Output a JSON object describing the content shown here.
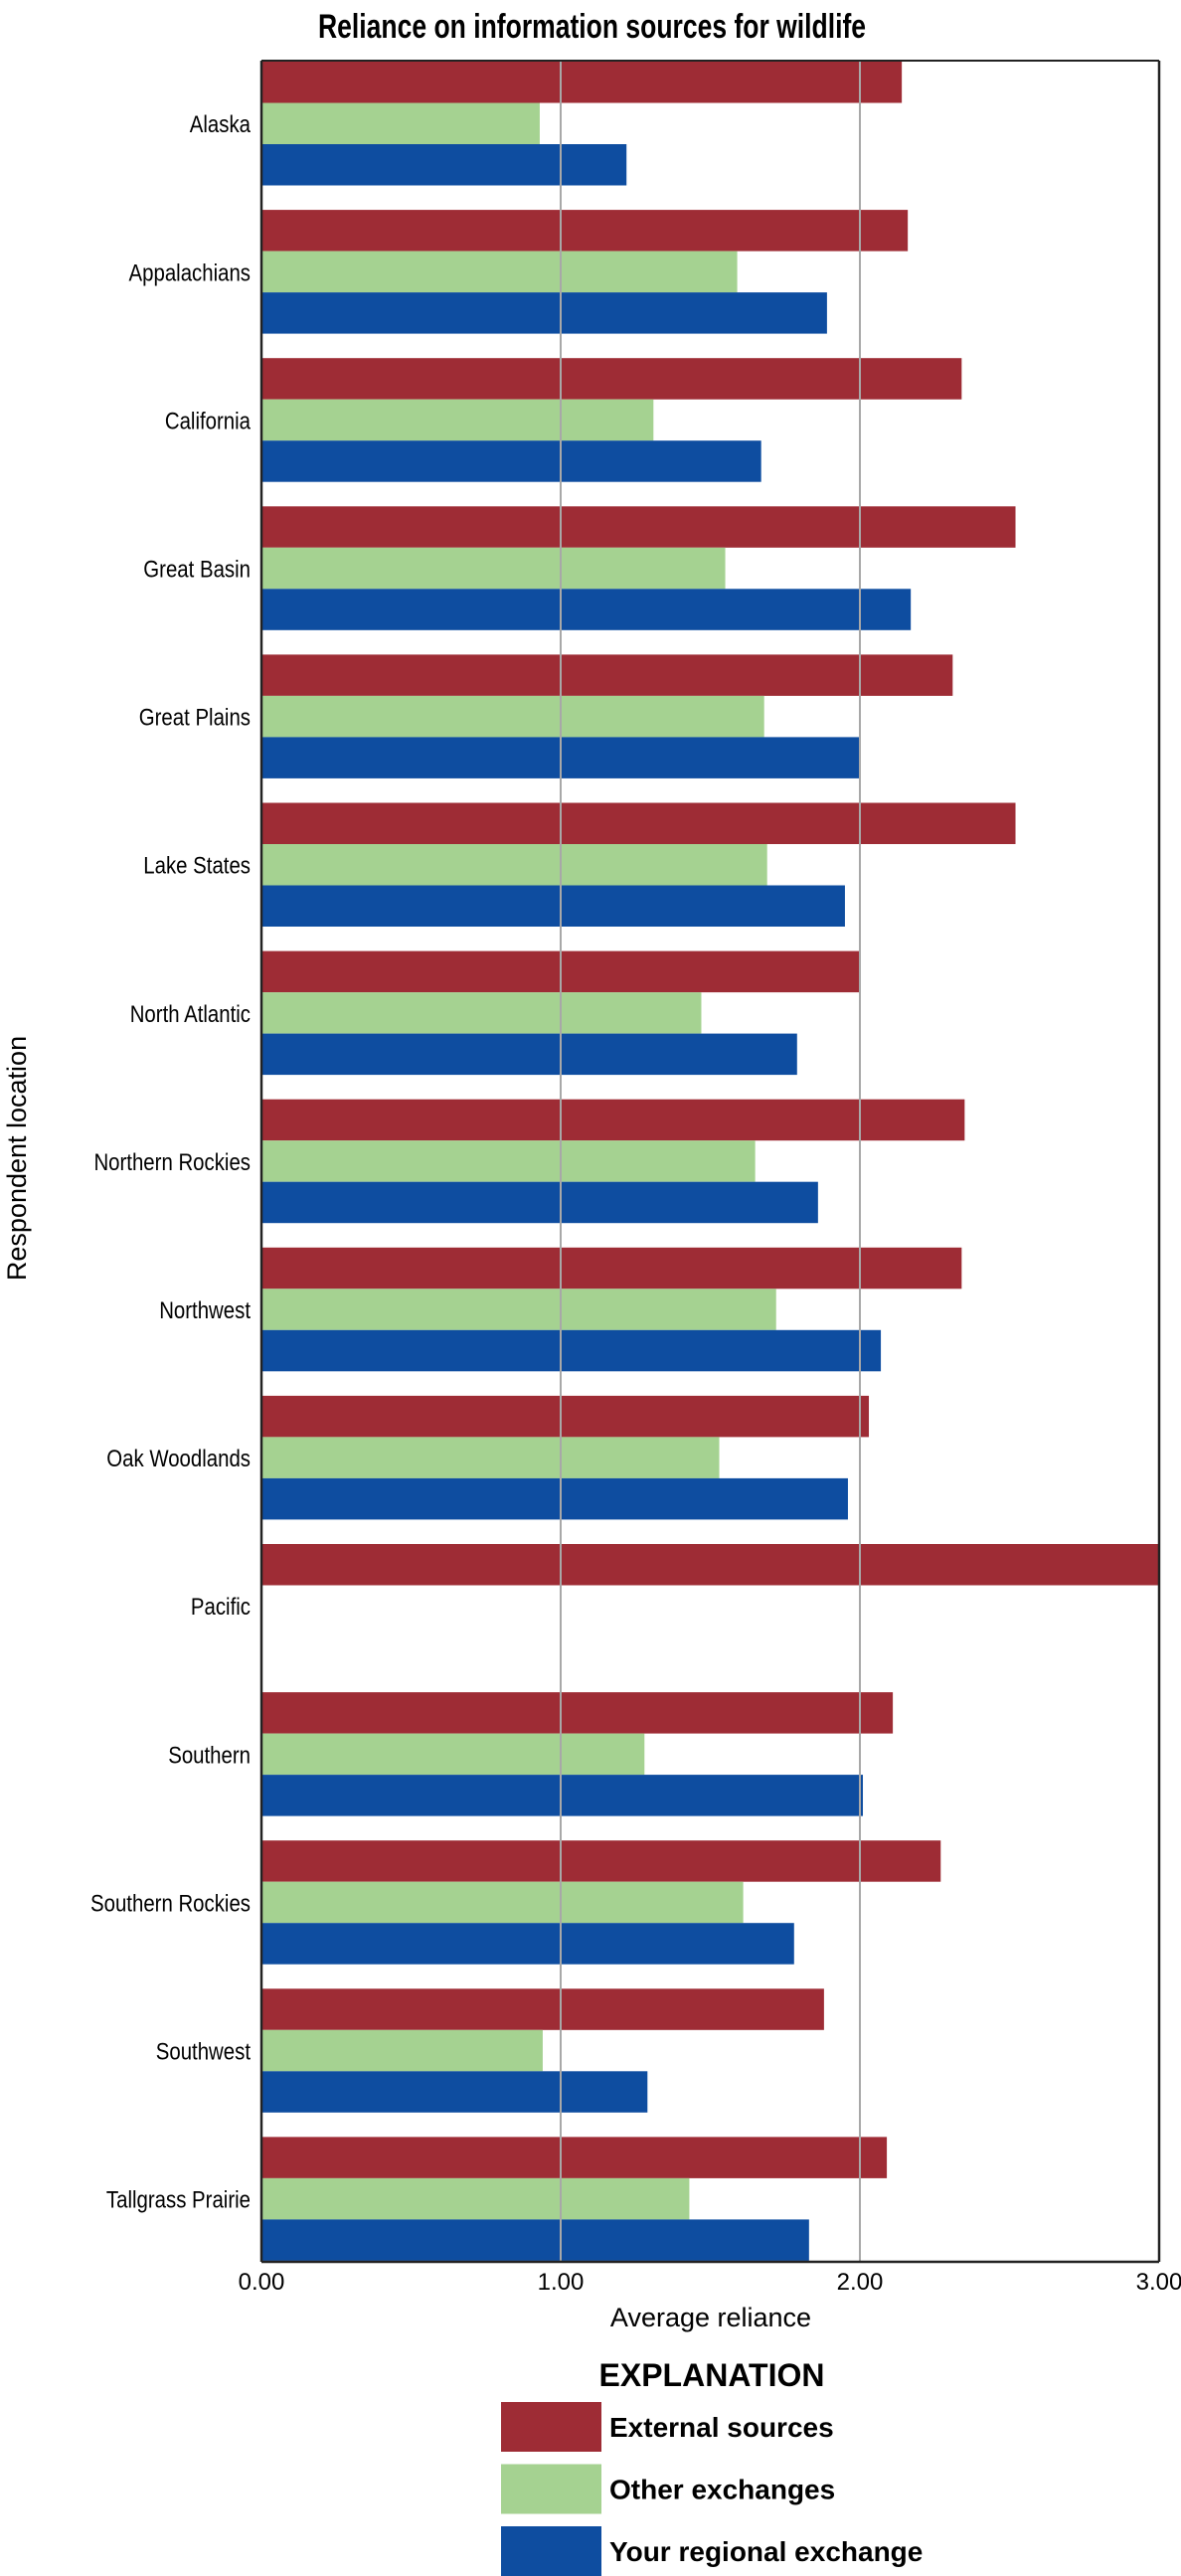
{
  "chart_data": {
    "type": "bar",
    "orientation": "horizontal",
    "title": "Reliance on information sources for wildlife",
    "xlabel": "Average reliance",
    "ylabel": "Respondent location",
    "xlim": [
      0,
      3
    ],
    "xticks": [
      "0.00",
      "1.00",
      "2.00",
      "3.00"
    ],
    "grid": "vertical lines at 1.00 and 2.00",
    "categories": [
      "Alaska",
      "Appalachians",
      "California",
      "Great Basin",
      "Great Plains",
      "Lake States",
      "North Atlantic",
      "Northern Rockies",
      "Northwest",
      "Oak Woodlands",
      "Pacific",
      "Southern",
      "Southern Rockies",
      "Southwest",
      "Tallgrass Prairie"
    ],
    "series": [
      {
        "name": "External sources",
        "color": "#9E2C35",
        "values": [
          2.14,
          2.16,
          2.34,
          2.52,
          2.31,
          2.52,
          2.0,
          2.35,
          2.34,
          2.03,
          3.0,
          2.11,
          2.27,
          1.88,
          2.09
        ]
      },
      {
        "name": "Other exchanges",
        "color": "#A5D291",
        "values": [
          0.93,
          1.59,
          1.31,
          1.55,
          1.68,
          1.69,
          1.47,
          1.65,
          1.72,
          1.53,
          null,
          1.28,
          1.61,
          0.94,
          1.43
        ]
      },
      {
        "name": "Your regional exchange",
        "color": "#0E4DA0",
        "values": [
          1.22,
          1.89,
          1.67,
          2.17,
          2.0,
          1.95,
          1.79,
          1.86,
          2.07,
          1.96,
          null,
          2.01,
          1.78,
          1.29,
          1.83
        ]
      }
    ],
    "legend": {
      "title": "EXPLANATION",
      "placement": "bottom-center"
    }
  }
}
